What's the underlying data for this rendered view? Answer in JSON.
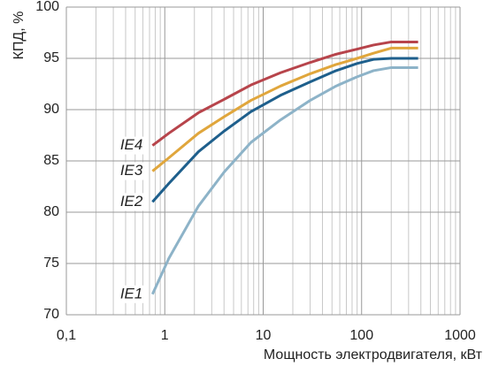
{
  "chart_data": {
    "type": "line",
    "y_label": "КПД, %",
    "x_label": "Мощность электродвигателя, кВт",
    "x": [
      0.75,
      1.1,
      2.2,
      4,
      7.5,
      15,
      30,
      55,
      90,
      132,
      200,
      375
    ],
    "series": [
      {
        "name": "IE4",
        "color": "#b7444b",
        "values": [
          86.5,
          87.7,
          89.7,
          91.0,
          92.4,
          93.6,
          94.6,
          95.4,
          95.9,
          96.3,
          96.6,
          96.6
        ]
      },
      {
        "name": "IE3",
        "color": "#e0a63c",
        "values": [
          84.0,
          85.3,
          87.7,
          89.3,
          90.9,
          92.3,
          93.5,
          94.4,
          95.0,
          95.5,
          96.0,
          96.0
        ]
      },
      {
        "name": "IE2",
        "color": "#1e5f8c",
        "values": [
          81.0,
          82.8,
          85.9,
          87.9,
          89.8,
          91.4,
          92.7,
          93.8,
          94.5,
          94.9,
          95.0,
          95.0
        ]
      },
      {
        "name": "IE1",
        "color": "#8db3c8",
        "values": [
          72.0,
          75.5,
          80.6,
          83.9,
          86.8,
          89.0,
          90.9,
          92.3,
          93.2,
          93.8,
          94.1,
          94.1
        ]
      }
    ],
    "xlim": [
      0.1,
      1000
    ],
    "x_log": true,
    "xticks": [
      {
        "value": 0.1,
        "label": "0,1"
      },
      1,
      10,
      100,
      1000
    ],
    "ylim": [
      70,
      100
    ],
    "yticks": [
      70,
      75,
      80,
      85,
      90,
      95,
      100
    ],
    "grid": true,
    "minor_grid": true
  }
}
